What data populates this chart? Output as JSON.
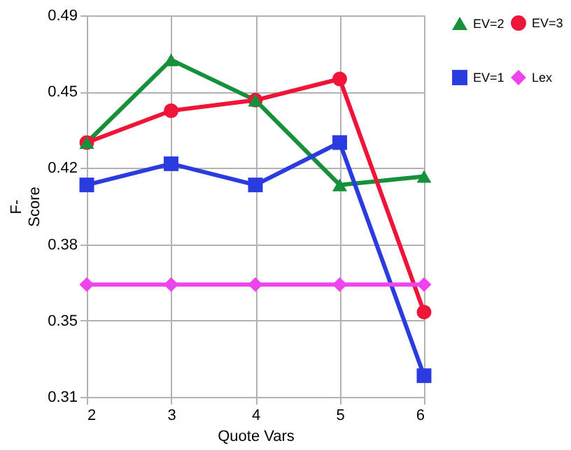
{
  "chart_data": {
    "type": "line",
    "xlabel": "Quote Vars",
    "ylabel": "F- Score",
    "x": [
      2,
      3,
      4,
      5,
      6
    ],
    "series": [
      {
        "name": "EV=2",
        "color": "#16903a",
        "marker": "triangle",
        "values": [
          0.43,
          0.469,
          0.45,
          0.41,
          0.414
        ]
      },
      {
        "name": "EV=3",
        "color": "#ee1538",
        "marker": "circle",
        "values": [
          0.43,
          0.445,
          0.45,
          0.46,
          0.35
        ]
      },
      {
        "name": "EV=1",
        "color": "#2a3ce0",
        "marker": "square",
        "values": [
          0.41,
          0.42,
          0.41,
          0.43,
          0.32
        ]
      },
      {
        "name": "Lex",
        "color": "#ee44ee",
        "marker": "diamond",
        "values": [
          0.363,
          0.363,
          0.363,
          0.363,
          0.363
        ]
      }
    ],
    "xlim": [
      2,
      6
    ],
    "xticks": [
      2,
      3,
      4,
      5,
      6
    ],
    "ylim": [
      0.31,
      0.49
    ],
    "yticks": [
      0.31,
      {
        "value": 0.346,
        "label": "0.35"
      },
      {
        "value": 0.382,
        "label": "0.38"
      },
      {
        "value": 0.418,
        "label": "0.42"
      },
      {
        "value": 0.454,
        "label": "0.45"
      },
      0.49
    ],
    "grid": true,
    "legend": "right",
    "line_style": "solid"
  }
}
